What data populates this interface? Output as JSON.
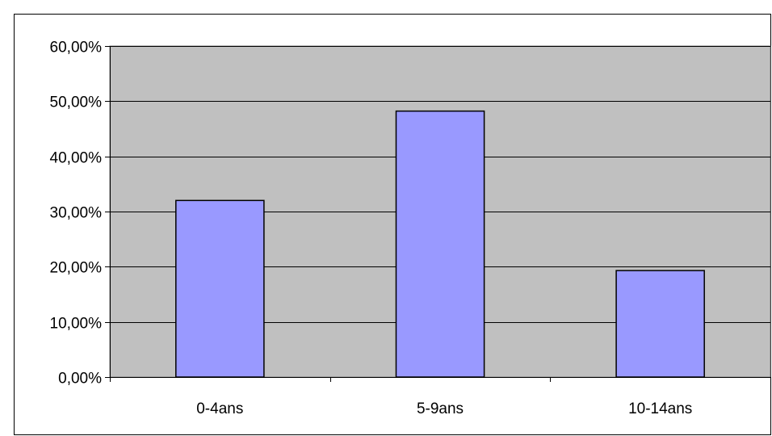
{
  "chart_data": {
    "type": "bar",
    "categories": [
      "0-4ans",
      "5-9ans",
      "10-14ans"
    ],
    "values": [
      0.32,
      0.482,
      0.193
    ],
    "title": "",
    "xlabel": "",
    "ylabel": "",
    "ylim": [
      0,
      0.6
    ],
    "yticks": [
      0,
      0.1,
      0.2,
      0.3,
      0.4,
      0.5,
      0.6
    ],
    "ytick_labels": [
      "0,00%",
      "10,00%",
      "20,00%",
      "30,00%",
      "40,00%",
      "50,00%",
      "60,00%"
    ],
    "grid": true,
    "legend": "none",
    "colors": {
      "plot_background": "#c0c0c0",
      "bar_fill": "#9999ff",
      "bar_stroke": "#000000",
      "gridline": "#000000"
    }
  }
}
